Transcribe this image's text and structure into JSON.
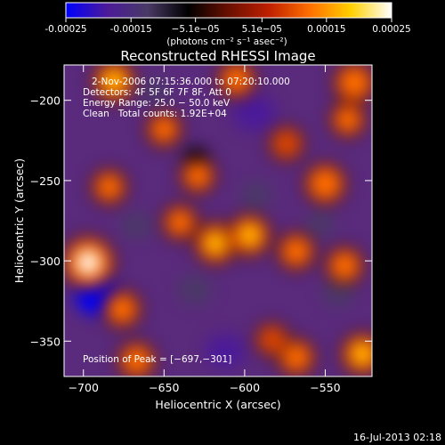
{
  "chart_data": {
    "type": "heatmap",
    "title": "Reconstructed RHESSI Image",
    "xlabel": "Heliocentric X (arcsec)",
    "ylabel": "Heliocentric Y (arcsec)",
    "xlim": [
      -712,
      -521
    ],
    "ylim": [
      -372,
      -178
    ],
    "x_ticks": [
      -700,
      -650,
      -600,
      -550
    ],
    "x_tick_labels": [
      "−700",
      "−650",
      "−600",
      "−550"
    ],
    "y_ticks": [
      -200,
      -250,
      -300,
      -350
    ],
    "y_tick_labels": [
      "−200",
      "−250",
      "−300",
      "−350"
    ],
    "colorbar": {
      "range": [
        -0.00025,
        0.00025
      ],
      "ticks": [
        -0.00025,
        -0.00015,
        -5.1e-05,
        5.1e-05,
        0.00015,
        0.00025
      ],
      "tick_labels": [
        "-0.00025",
        "-0.00015",
        "−5.1e−05",
        "5.1e−05",
        "0.00015",
        "0.00025"
      ],
      "units": "(photons cm⁻² s⁻¹ asec⁻²)",
      "colormap": [
        "#0000ff",
        "#4b1a9a",
        "#4a3a66",
        "#000000",
        "#6a1000",
        "#c02000",
        "#ff7000",
        "#ffd000",
        "#ffffff"
      ]
    },
    "annotations": {
      "time": "2-Nov-2006 07:15:36.000 to 07:20:10.000",
      "detectors": "Detectors: 4F 5F 6F 7F 8F, Att 0",
      "energy": "Energy Range: 25.0 − 50.0 keV",
      "method": "Clean   Total counts: 1.92E+04",
      "peak": "Position of Peak = [−697,−301]"
    },
    "peak": {
      "x": -697,
      "y": -301
    },
    "bright_sources": [
      {
        "x": -697,
        "y": -301,
        "v": 0.00025
      },
      {
        "x": -618,
        "y": -289,
        "v": 0.00016
      },
      {
        "x": -597,
        "y": -284,
        "v": 0.00016
      },
      {
        "x": -568,
        "y": -294,
        "v": 0.00012
      },
      {
        "x": -550,
        "y": -252,
        "v": 0.00015
      },
      {
        "x": -538,
        "y": -303,
        "v": 0.00012
      },
      {
        "x": -527,
        "y": -358,
        "v": 0.00016
      },
      {
        "x": -568,
        "y": -360,
        "v": 0.00012
      },
      {
        "x": -667,
        "y": -362,
        "v": 0.00012
      },
      {
        "x": -583,
        "y": -349,
        "v": 8e-05
      },
      {
        "x": -681,
        "y": -188,
        "v": 0.00016
      },
      {
        "x": -532,
        "y": -189,
        "v": 0.00015
      },
      {
        "x": -536,
        "y": -212,
        "v": 0.0001
      },
      {
        "x": -650,
        "y": -218,
        "v": 0.0001
      },
      {
        "x": -629,
        "y": -247,
        "v": 0.0001
      },
      {
        "x": -684,
        "y": -254,
        "v": 0.0001
      },
      {
        "x": -676,
        "y": -330,
        "v": 0.00012
      },
      {
        "x": -574,
        "y": -227,
        "v": 9e-05
      },
      {
        "x": -605,
        "y": -187,
        "v": 0.00012
      },
      {
        "x": -640,
        "y": -276,
        "v": 0.0001
      }
    ],
    "dim_sources": [
      {
        "x": -691,
        "y": -322,
        "v": -0.00022
      },
      {
        "x": -594,
        "y": -208,
        "v": -0.0002
      },
      {
        "x": -612,
        "y": -356,
        "v": -0.00018
      },
      {
        "x": -631,
        "y": -318,
        "v": -0.00014
      },
      {
        "x": -667,
        "y": -278,
        "v": -0.00012
      },
      {
        "x": -593,
        "y": -259,
        "v": -0.00012
      },
      {
        "x": -542,
        "y": -320,
        "v": -0.00012
      },
      {
        "x": -553,
        "y": -277,
        "v": -0.0001
      },
      {
        "x": -656,
        "y": -194,
        "v": -0.0001
      },
      {
        "x": -630,
        "y": -236,
        "v": -8e-05
      }
    ]
  },
  "footer": "16-Jul-2013 02:18"
}
